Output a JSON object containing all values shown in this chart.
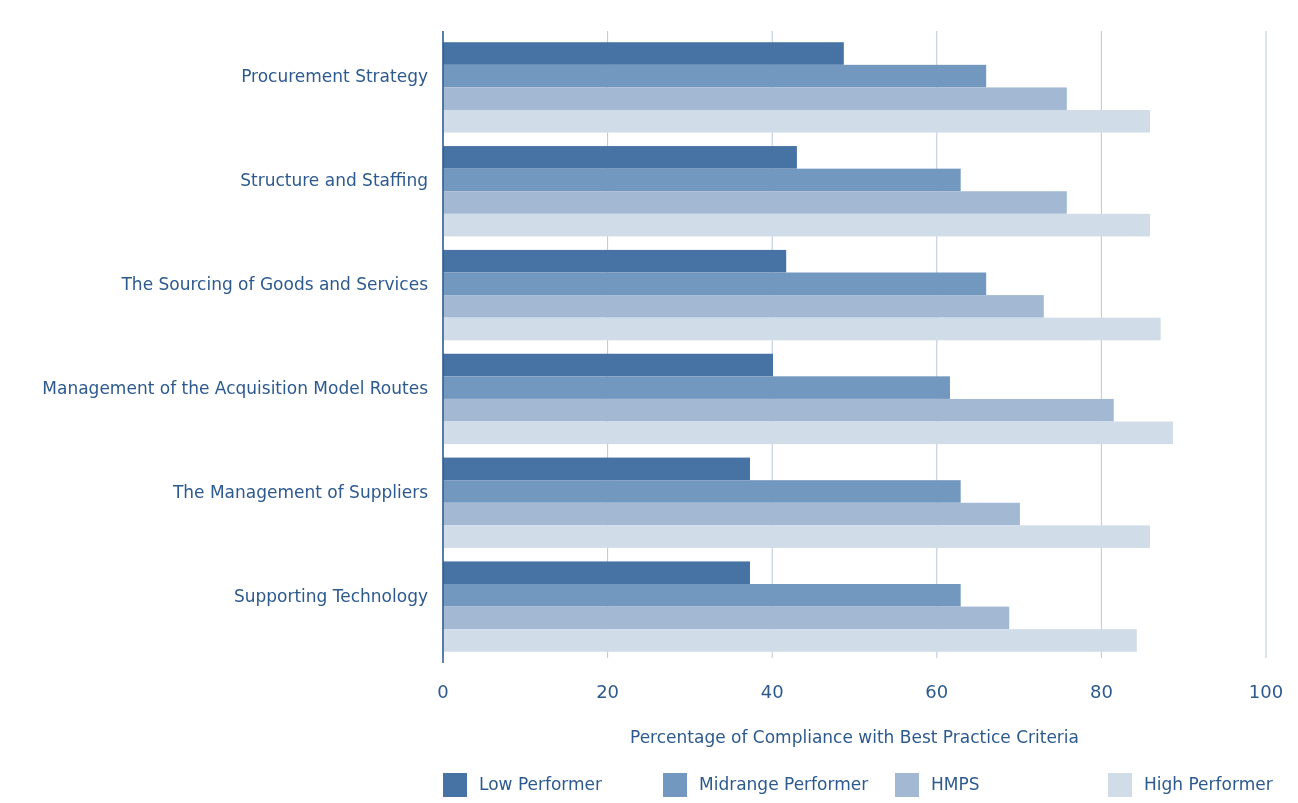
{
  "chart_data": {
    "type": "bar",
    "orientation": "horizontal",
    "xlabel": "Percentage of Compliance with Best Practice Criteria",
    "categories": [
      "Procurement Strategy",
      "Structure and Staffing",
      "The Sourcing of Goods and Services",
      "Management of the Acquisition Model Routes",
      "The Management of Suppliers",
      "Supporting Technology"
    ],
    "series": [
      {
        "name": "Low Performer",
        "color": "#4672a4",
        "values": [
          48.7,
          43,
          41.7,
          40.1,
          37.3,
          37.3
        ]
      },
      {
        "name": "Midrange Performer",
        "color": "#7398bf",
        "values": [
          66,
          62.9,
          66,
          61.6,
          62.9,
          62.9
        ]
      },
      {
        "name": "HMPS",
        "color": "#a3b9d3",
        "values": [
          75.8,
          75.8,
          73,
          81.5,
          70.1,
          68.8
        ]
      },
      {
        "name": "High Performer",
        "color": "#d0dce8",
        "values": [
          85.9,
          85.9,
          87.2,
          88.7,
          85.9,
          84.3
        ]
      }
    ],
    "xlim": [
      0,
      100
    ],
    "xticks": [
      0,
      20,
      40,
      60,
      80,
      100
    ],
    "grid": "x",
    "legend": "bottom"
  }
}
